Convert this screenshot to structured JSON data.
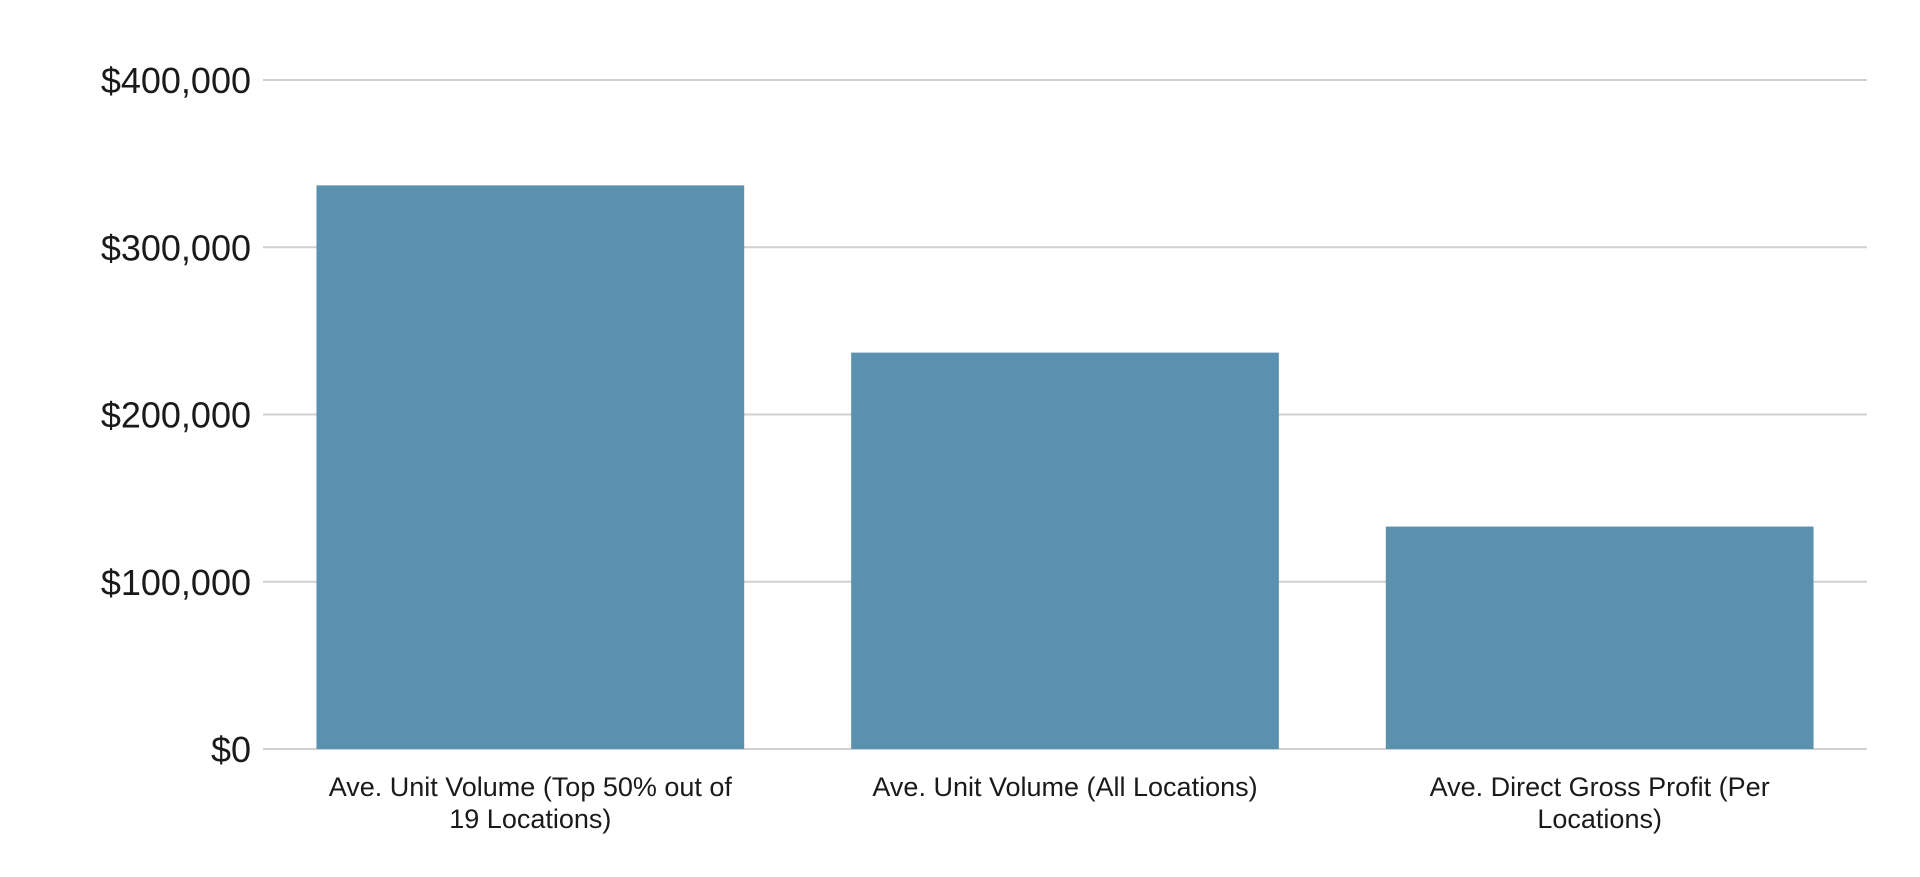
{
  "chart_data": {
    "type": "bar",
    "categories": [
      "Ave. Unit Volume (Top 50% out of 19 Locations)",
      "Ave. Unit Volume (All Locations)",
      "Ave. Direct Gross Profit (Per Locations)"
    ],
    "category_lines": [
      [
        "Ave. Unit Volume (Top 50% out of",
        "19 Locations)"
      ],
      [
        "Ave. Unit Volume (All Locations)"
      ],
      [
        "Ave. Direct Gross Profit (Per",
        "Locations)"
      ]
    ],
    "values": [
      337000,
      237000,
      133000
    ],
    "ylim": [
      0,
      400000
    ],
    "yticks": [
      0,
      100000,
      200000,
      300000,
      400000
    ],
    "ytick_labels": [
      "$0",
      "$100,000",
      "$200,000",
      "$300,000",
      "$400,000"
    ],
    "title": "",
    "xlabel": "",
    "ylabel": "",
    "grid": true,
    "legend": "none",
    "colors": {
      "bar": "#5a91ae",
      "grid": "#d0d0d0",
      "text": "#1a1a1a"
    }
  }
}
